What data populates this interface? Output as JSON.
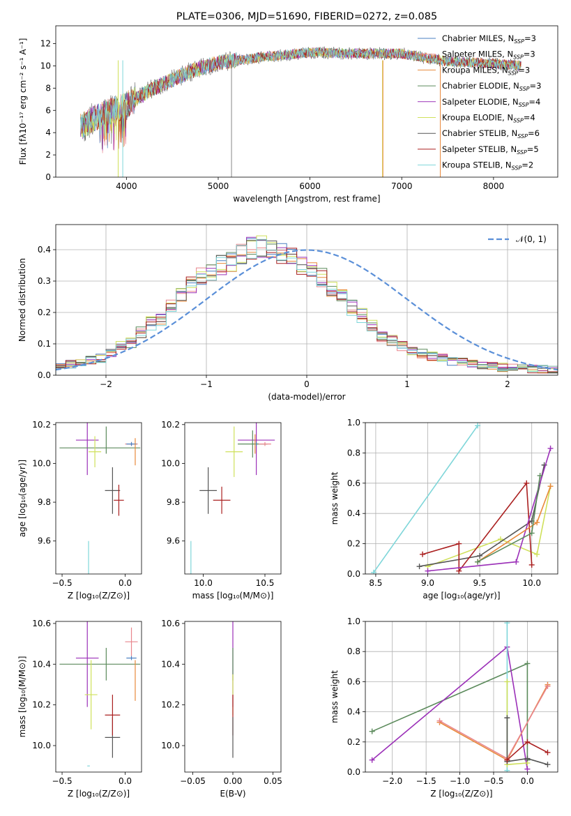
{
  "chart_data": [
    {
      "id": "spectrum",
      "type": "line",
      "title": "PLATE=0306, MJD=51690, FIBERID=0272, z=0.085",
      "xlabel": "wavelength [Angstrom, rest frame]",
      "ylabel": "Flux [fλ10⁻¹⁷ erg cm⁻² s⁻¹ A⁻¹]",
      "xlim": [
        3230,
        8700
      ],
      "ylim": [
        0,
        13.6
      ],
      "xticks": [
        4000,
        5000,
        6000,
        7000,
        8000
      ],
      "yticks": [
        0,
        2,
        4,
        6,
        8,
        10,
        12
      ],
      "legend_position": "right",
      "series_names": [
        "Chabrier MILES, N_SSP=3",
        "Salpeter MILES, N_SSP=3",
        "Kroupa MILES, N_SSP=3",
        "Chabrier ELODIE, N_SSP=3",
        "Salpeter ELODIE, N_SSP=4",
        "Kroupa ELODIE, N_SSP=4",
        "Chabrier STELIB, N_SSP=6",
        "Salpeter STELIB, N_SSP=5",
        "Kroupa STELIB, N_SSP=2"
      ],
      "series_colors": [
        "#4a7fc1",
        "#e8858c",
        "#e8893a",
        "#5b8a5b",
        "#9b30b8",
        "#cfe05a",
        "#555555",
        "#aa1f1f",
        "#7ed6d9"
      ],
      "continuum": {
        "x": [
          3500,
          3700,
          4000,
          4300,
          4700,
          5000,
          5500,
          6000,
          6500,
          7000,
          7500,
          8000,
          8300
        ],
        "y": [
          4.5,
          5.5,
          6.5,
          8.0,
          9.5,
          10.3,
          10.8,
          11.2,
          11.1,
          11.1,
          10.4,
          10.2,
          10.0
        ]
      }
    },
    {
      "id": "residual-histogram",
      "type": "histogram",
      "xlabel": "(data-model)/error",
      "ylabel": "Normed distribution",
      "xlim": [
        -2.5,
        2.5
      ],
      "ylim": [
        0,
        0.48
      ],
      "xticks": [
        -2,
        -1,
        0,
        1,
        2
      ],
      "yticks": [
        0.0,
        0.1,
        0.2,
        0.3,
        0.4
      ],
      "grid": true,
      "legend_position": "top-right",
      "legend": [
        "𝒩(0, 1)"
      ],
      "bin_width": 0.1,
      "bin_start": -2.5,
      "base_density": [
        0.025,
        0.03,
        0.035,
        0.04,
        0.045,
        0.05,
        0.055,
        0.065,
        0.075,
        0.085,
        0.095,
        0.105,
        0.12,
        0.135,
        0.15,
        0.165,
        0.18,
        0.2,
        0.225,
        0.25,
        0.27,
        0.29,
        0.31,
        0.32,
        0.33,
        0.34,
        0.35,
        0.36,
        0.37,
        0.385,
        0.395,
        0.405,
        0.41,
        0.415,
        0.405,
        0.39,
        0.385,
        0.375,
        0.36,
        0.35,
        0.335,
        0.32,
        0.31,
        0.29,
        0.27,
        0.25,
        0.235,
        0.215,
        0.19,
        0.17,
        0.155,
        0.14,
        0.125,
        0.11,
        0.1,
        0.09,
        0.08,
        0.075,
        0.07,
        0.065,
        0.06,
        0.055,
        0.05,
        0.045,
        0.04,
        0.038,
        0.035,
        0.033,
        0.03,
        0.028,
        0.026,
        0.025,
        0.024,
        0.023,
        0.022,
        0.021,
        0.02,
        0.02,
        0.02,
        0.02
      ],
      "series_colors": [
        "#4a7fc1",
        "#e8858c",
        "#e8893a",
        "#5b8a5b",
        "#9b30b8",
        "#cfe05a",
        "#555555",
        "#aa1f1f",
        "#7ed6d9"
      ],
      "normal_color": "#5a8fd8"
    },
    {
      "id": "age-vs-z",
      "type": "scatter",
      "xlabel": "Z [log₁₀(Z/Z⊙)]",
      "ylabel": "age  [log₁₀(age/yr)]",
      "xlim": [
        -0.55,
        0.13
      ],
      "ylim": [
        9.43,
        10.21
      ],
      "xticks": [
        -0.5,
        0.0
      ],
      "yticks": [
        9.6,
        9.8,
        10.0,
        10.2
      ],
      "points": [
        {
          "x": -0.3,
          "y": 10.12,
          "xerr": 0.09,
          "yerr": 0.18,
          "color": "#9b30b8"
        },
        {
          "x": -0.15,
          "y": 10.12,
          "xerr": 0.0,
          "yerr": 0.07,
          "color": "#5b8a5b"
        },
        {
          "x": -0.2,
          "y": 10.08,
          "xerr": 0.32,
          "yerr": 0.0,
          "color": "#5b8a5b"
        },
        {
          "x": -0.24,
          "y": 10.06,
          "xerr": 0.05,
          "yerr": 0.08,
          "color": "#cfe05a"
        },
        {
          "x": 0.05,
          "y": 10.1,
          "xerr": 0.05,
          "yerr": 0.01,
          "color": "#e8858c"
        },
        {
          "x": 0.05,
          "y": 10.1,
          "xerr": 0.04,
          "yerr": 0.01,
          "color": "#4a7fc1"
        },
        {
          "x": 0.08,
          "y": 10.06,
          "xerr": 0.0,
          "yerr": 0.07,
          "color": "#e8893a"
        },
        {
          "x": -0.1,
          "y": 9.86,
          "xerr": 0.06,
          "yerr": 0.12,
          "color": "#555555"
        },
        {
          "x": -0.05,
          "y": 9.81,
          "xerr": 0.04,
          "yerr": 0.08,
          "color": "#aa1f1f"
        },
        {
          "x": -0.29,
          "y": 9.47,
          "xerr": 0.0,
          "yerr": 0.13,
          "color": "#7ed6d9"
        }
      ]
    },
    {
      "id": "age-vs-mass",
      "type": "scatter",
      "xlabel": "mass [log₁₀(M/M⊙)]",
      "ylabel": "",
      "xlim": [
        9.85,
        10.63
      ],
      "ylim": [
        9.43,
        10.21
      ],
      "xticks": [
        10.0,
        10.5
      ],
      "yticks": [
        9.6,
        9.8,
        10.0,
        10.2
      ],
      "points": [
        {
          "x": 10.43,
          "y": 10.12,
          "xerr": 0.15,
          "yerr": 0.18,
          "color": "#9b30b8"
        },
        {
          "x": 10.4,
          "y": 10.1,
          "xerr": 0.12,
          "yerr": 0.07,
          "color": "#5b8a5b"
        },
        {
          "x": 10.25,
          "y": 10.06,
          "xerr": 0.07,
          "yerr": 0.13,
          "color": "#cfe05a"
        },
        {
          "x": 10.43,
          "y": 10.1,
          "xerr": 0.0,
          "yerr": 0.01,
          "color": "#4a7fc1"
        },
        {
          "x": 10.5,
          "y": 10.1,
          "xerr": 0.05,
          "yerr": 0.01,
          "color": "#e8858c"
        },
        {
          "x": 10.42,
          "y": 10.1,
          "xerr": 0.0,
          "yerr": 0.05,
          "color": "#e8893a"
        },
        {
          "x": 10.04,
          "y": 9.86,
          "xerr": 0.07,
          "yerr": 0.12,
          "color": "#555555"
        },
        {
          "x": 10.15,
          "y": 9.81,
          "xerr": 0.07,
          "yerr": 0.07,
          "color": "#aa1f1f"
        },
        {
          "x": 9.9,
          "y": 9.51,
          "xerr": 0.0,
          "yerr": 0.09,
          "color": "#7ed6d9"
        }
      ]
    },
    {
      "id": "massweight-vs-age",
      "type": "line",
      "xlabel": "age  [log₁₀(age/yr)]",
      "ylabel": "mass weight",
      "xlim": [
        8.4,
        10.25
      ],
      "ylim": [
        0.0,
        1.0
      ],
      "xticks": [
        8.5,
        9.0,
        9.5,
        10.0
      ],
      "yticks": [
        0.0,
        0.2,
        0.4,
        0.6,
        0.8,
        1.0
      ],
      "grid": true,
      "series": [
        {
          "color": "#7ed6d9",
          "x": [
            8.48,
            9.48
          ],
          "y": [
            0.01,
            0.98
          ]
        },
        {
          "color": "#cfe05a",
          "x": [
            9.0,
            9.7,
            10.05,
            10.18
          ],
          "y": [
            0.05,
            0.23,
            0.13,
            0.58
          ]
        },
        {
          "color": "#555555",
          "x": [
            8.92,
            9.5,
            10.0,
            10.12
          ],
          "y": [
            0.05,
            0.12,
            0.35,
            0.72
          ]
        },
        {
          "color": "#aa1f1f",
          "x": [
            8.95,
            9.3,
            9.3,
            9.95,
            10.0
          ],
          "y": [
            0.13,
            0.2,
            0.02,
            0.6,
            0.06
          ]
        },
        {
          "color": "#9b30b8",
          "x": [
            9.0,
            9.85,
            10.18
          ],
          "y": [
            0.02,
            0.08,
            0.83
          ]
        },
        {
          "color": "#e8893a",
          "x": [
            9.48,
            10.05,
            10.18
          ],
          "y": [
            0.08,
            0.34,
            0.58
          ]
        },
        {
          "color": "#5b8a5b",
          "x": [
            9.48,
            10.0,
            10.08
          ],
          "y": [
            0.08,
            0.27,
            0.65
          ]
        }
      ]
    },
    {
      "id": "mass-vs-z",
      "type": "scatter",
      "xlabel": "Z [log₁₀(Z/Z⊙)]",
      "ylabel": "mass [log₁₀(M/M⊙)]",
      "xlim": [
        -0.55,
        0.13
      ],
      "ylim": [
        9.87,
        10.61
      ],
      "xticks": [
        -0.5,
        0.0
      ],
      "yticks": [
        10.0,
        10.2,
        10.4,
        10.6
      ],
      "points": [
        {
          "x": -0.3,
          "y": 10.43,
          "xerr": 0.09,
          "yerr": 0.24,
          "color": "#9b30b8"
        },
        {
          "x": -0.15,
          "y": 10.4,
          "xerr": 0.0,
          "yerr": 0.08,
          "color": "#5b8a5b"
        },
        {
          "x": -0.2,
          "y": 10.4,
          "xerr": 0.32,
          "yerr": 0.0,
          "color": "#5b8a5b"
        },
        {
          "x": -0.27,
          "y": 10.25,
          "xerr": 0.05,
          "yerr": 0.17,
          "color": "#cfe05a"
        },
        {
          "x": 0.05,
          "y": 10.51,
          "xerr": 0.05,
          "yerr": 0.07,
          "color": "#e8858c"
        },
        {
          "x": 0.05,
          "y": 10.43,
          "xerr": 0.04,
          "yerr": 0.01,
          "color": "#4a7fc1"
        },
        {
          "x": 0.08,
          "y": 10.32,
          "xerr": 0.0,
          "yerr": 0.1,
          "color": "#e8893a"
        },
        {
          "x": -0.1,
          "y": 10.04,
          "xerr": 0.06,
          "yerr": 0.1,
          "color": "#555555"
        },
        {
          "x": -0.1,
          "y": 10.15,
          "xerr": 0.06,
          "yerr": 0.1,
          "color": "#aa1f1f"
        },
        {
          "x": -0.29,
          "y": 9.9,
          "xerr": 0.01,
          "yerr": 0.0,
          "color": "#7ed6d9"
        }
      ]
    },
    {
      "id": "mass-vs-ebv",
      "type": "scatter",
      "xlabel": "E(B-V)",
      "ylabel": "",
      "xlim": [
        -0.06,
        0.06
      ],
      "ylim": [
        9.87,
        10.61
      ],
      "xticks": [
        -0.05,
        0.0,
        0.05
      ],
      "yticks": [
        10.0,
        10.2,
        10.4,
        10.6
      ],
      "points": [
        {
          "x": 0.0,
          "y": 10.43,
          "xerr": 0.0,
          "yerr": 0.24,
          "color": "#9b30b8"
        },
        {
          "x": 0.0,
          "y": 10.4,
          "xerr": 0.0,
          "yerr": 0.08,
          "color": "#5b8a5b"
        },
        {
          "x": 0.0,
          "y": 10.25,
          "xerr": 0.0,
          "yerr": 0.1,
          "color": "#cfe05a"
        },
        {
          "x": 0.0,
          "y": 10.15,
          "xerr": 0.0,
          "yerr": 0.1,
          "color": "#aa1f1f"
        },
        {
          "x": 0.0,
          "y": 10.04,
          "xerr": 0.0,
          "yerr": 0.1,
          "color": "#555555"
        }
      ]
    },
    {
      "id": "massweight-vs-z",
      "type": "line",
      "xlabel": "Z [log₁₀(Z/Z⊙)]",
      "ylabel": "mass weight",
      "xlim": [
        -2.4,
        0.45
      ],
      "ylim": [
        0.0,
        1.0
      ],
      "xticks": [
        -2.0,
        -1.5,
        -1.0,
        -0.5,
        0.0
      ],
      "yticks": [
        0.0,
        0.2,
        0.4,
        0.6,
        0.8,
        1.0
      ],
      "grid": true,
      "series": [
        {
          "color": "#5b8a5b",
          "x": [
            -2.3,
            0.0,
            0.0
          ],
          "y": [
            0.27,
            0.72,
            0.08
          ]
        },
        {
          "color": "#9b30b8",
          "x": [
            -2.3,
            -0.3,
            0.0
          ],
          "y": [
            0.08,
            0.83,
            0.02
          ]
        },
        {
          "color": "#e8893a",
          "x": [
            -1.3,
            -0.3,
            0.3
          ],
          "y": [
            0.33,
            0.08,
            0.58
          ]
        },
        {
          "color": "#e8858c",
          "x": [
            -1.3,
            -0.3,
            0.3
          ],
          "y": [
            0.34,
            0.09,
            0.57
          ]
        },
        {
          "color": "#7ed6d9",
          "x": [
            -0.3,
            -0.3
          ],
          "y": [
            0.01,
            0.99
          ]
        },
        {
          "color": "#cfe05a",
          "x": [
            -0.3,
            -0.3,
            0.0
          ],
          "y": [
            0.6,
            0.05,
            0.06
          ]
        },
        {
          "color": "#555555",
          "x": [
            -0.3,
            -0.3,
            0.0,
            0.3
          ],
          "y": [
            0.36,
            0.07,
            0.09,
            0.05
          ]
        },
        {
          "color": "#aa1f1f",
          "x": [
            -0.3,
            0.0,
            0.3
          ],
          "y": [
            0.08,
            0.2,
            0.13
          ]
        }
      ]
    }
  ]
}
